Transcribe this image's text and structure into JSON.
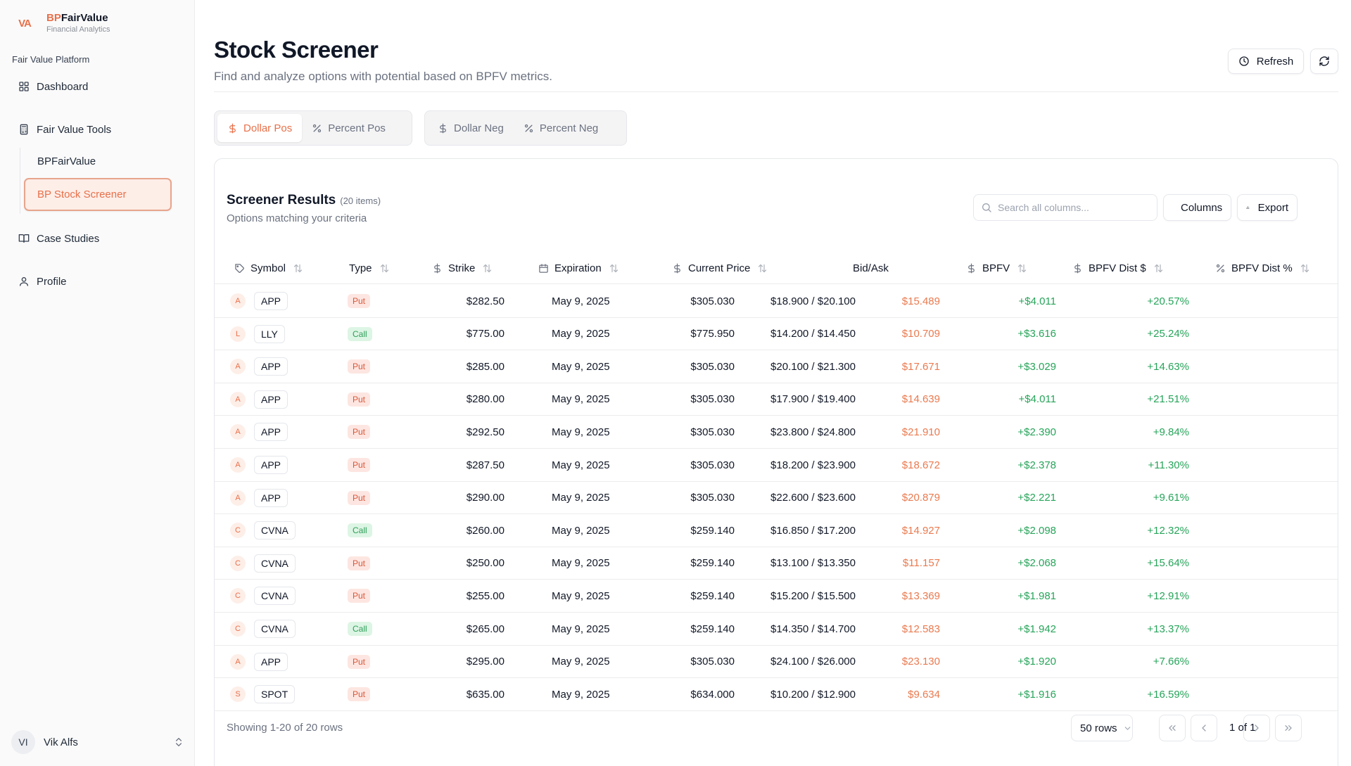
{
  "brand": {
    "logo": "VA",
    "name_accent": "BP",
    "name_rest": "FairValue",
    "subtitle": "Financial Analytics"
  },
  "sidebar": {
    "group_label": "Fair Value Platform",
    "dashboard": "Dashboard",
    "fair_value_tools": "Fair Value Tools",
    "sub_items": [
      "BPFairValue",
      "BP Stock Screener"
    ],
    "case_studies": "Case Studies",
    "profile": "Profile",
    "user": {
      "initials": "VI",
      "name": "Vik Alfs"
    }
  },
  "header": {
    "title": "Stock Screener",
    "subtitle": "Find and analyze options with potential based on BPFV metrics.",
    "refresh_label": "Refresh"
  },
  "tabs": {
    "group1": [
      "Dollar Pos",
      "Percent Pos"
    ],
    "group2": [
      "Dollar Neg",
      "Percent Neg"
    ],
    "active": "Dollar Pos"
  },
  "results": {
    "title": "Screener Results",
    "count": "(20 items)",
    "subtitle": "Options matching your criteria",
    "search_placeholder": "Search all columns...",
    "columns_label": "Columns",
    "export_label": "Export"
  },
  "table": {
    "headers": [
      "Symbol",
      "Type",
      "Strike",
      "Expiration",
      "Current Price",
      "Bid/Ask",
      "BPFV",
      "BPFV Dist $",
      "BPFV Dist %"
    ],
    "rows": [
      {
        "letter": "A",
        "symbol": "APP",
        "type": "Put",
        "strike": "$282.50",
        "expiration": "May 9, 2025",
        "current": "$305.030",
        "bidask": "$18.900 / $20.100",
        "bpfv": "$15.489",
        "dist": "+$4.011",
        "distpct": "+20.57%"
      },
      {
        "letter": "L",
        "symbol": "LLY",
        "type": "Call",
        "strike": "$775.00",
        "expiration": "May 9, 2025",
        "current": "$775.950",
        "bidask": "$14.200 / $14.450",
        "bpfv": "$10.709",
        "dist": "+$3.616",
        "distpct": "+25.24%"
      },
      {
        "letter": "A",
        "symbol": "APP",
        "type": "Put",
        "strike": "$285.00",
        "expiration": "May 9, 2025",
        "current": "$305.030",
        "bidask": "$20.100 / $21.300",
        "bpfv": "$17.671",
        "dist": "+$3.029",
        "distpct": "+14.63%"
      },
      {
        "letter": "A",
        "symbol": "APP",
        "type": "Put",
        "strike": "$280.00",
        "expiration": "May 9, 2025",
        "current": "$305.030",
        "bidask": "$17.900 / $19.400",
        "bpfv": "$14.639",
        "dist": "+$4.011",
        "distpct": "+21.51%"
      },
      {
        "letter": "A",
        "symbol": "APP",
        "type": "Put",
        "strike": "$292.50",
        "expiration": "May 9, 2025",
        "current": "$305.030",
        "bidask": "$23.800 / $24.800",
        "bpfv": "$21.910",
        "dist": "+$2.390",
        "distpct": "+9.84%"
      },
      {
        "letter": "A",
        "symbol": "APP",
        "type": "Put",
        "strike": "$287.50",
        "expiration": "May 9, 2025",
        "current": "$305.030",
        "bidask": "$18.200 / $23.900",
        "bpfv": "$18.672",
        "dist": "+$2.378",
        "distpct": "+11.30%"
      },
      {
        "letter": "A",
        "symbol": "APP",
        "type": "Put",
        "strike": "$290.00",
        "expiration": "May 9, 2025",
        "current": "$305.030",
        "bidask": "$22.600 / $23.600",
        "bpfv": "$20.879",
        "dist": "+$2.221",
        "distpct": "+9.61%"
      },
      {
        "letter": "C",
        "symbol": "CVNA",
        "type": "Call",
        "strike": "$260.00",
        "expiration": "May 9, 2025",
        "current": "$259.140",
        "bidask": "$16.850 / $17.200",
        "bpfv": "$14.927",
        "dist": "+$2.098",
        "distpct": "+12.32%"
      },
      {
        "letter": "C",
        "symbol": "CVNA",
        "type": "Put",
        "strike": "$250.00",
        "expiration": "May 9, 2025",
        "current": "$259.140",
        "bidask": "$13.100 / $13.350",
        "bpfv": "$11.157",
        "dist": "+$2.068",
        "distpct": "+15.64%"
      },
      {
        "letter": "C",
        "symbol": "CVNA",
        "type": "Put",
        "strike": "$255.00",
        "expiration": "May 9, 2025",
        "current": "$259.140",
        "bidask": "$15.200 / $15.500",
        "bpfv": "$13.369",
        "dist": "+$1.981",
        "distpct": "+12.91%"
      },
      {
        "letter": "C",
        "symbol": "CVNA",
        "type": "Call",
        "strike": "$265.00",
        "expiration": "May 9, 2025",
        "current": "$259.140",
        "bidask": "$14.350 / $14.700",
        "bpfv": "$12.583",
        "dist": "+$1.942",
        "distpct": "+13.37%"
      },
      {
        "letter": "A",
        "symbol": "APP",
        "type": "Put",
        "strike": "$295.00",
        "expiration": "May 9, 2025",
        "current": "$305.030",
        "bidask": "$24.100 / $26.000",
        "bpfv": "$23.130",
        "dist": "+$1.920",
        "distpct": "+7.66%"
      },
      {
        "letter": "S",
        "symbol": "SPOT",
        "type": "Put",
        "strike": "$635.00",
        "expiration": "May 9, 2025",
        "current": "$634.000",
        "bidask": "$10.200 / $12.900",
        "bpfv": "$9.634",
        "dist": "+$1.916",
        "distpct": "+16.59%"
      }
    ]
  },
  "footer": {
    "showing": "Showing 1-20 of 20 rows",
    "rows_per_page": "50 rows",
    "page": "1 of 1"
  },
  "colors": {
    "accent": "#e8704a",
    "positive": "#27a45a",
    "put_bg": "#fde6e1",
    "call_bg": "#ddf5e4"
  }
}
